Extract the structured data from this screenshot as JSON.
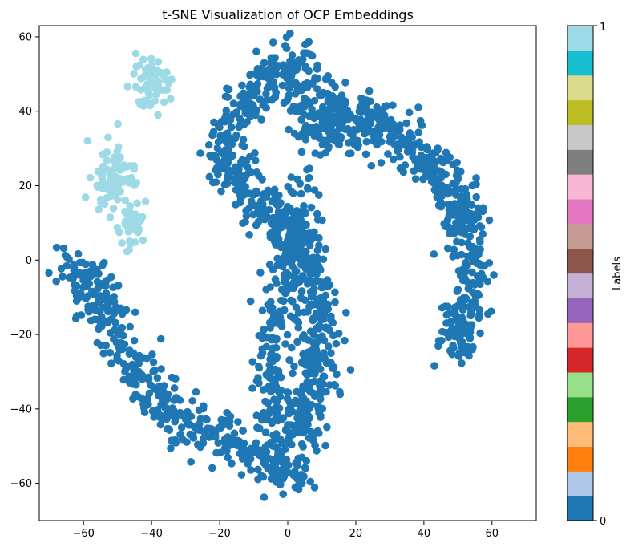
{
  "chart_data": {
    "type": "scatter",
    "title": "t-SNE Visualization of OCP Embeddings",
    "xlabel": "",
    "ylabel": "",
    "xlim": [
      -73,
      73
    ],
    "ylim": [
      -70,
      63
    ],
    "xticks": [
      -60,
      -40,
      -20,
      0,
      20,
      40,
      60
    ],
    "yticks": [
      -60,
      -40,
      -20,
      0,
      20,
      40,
      60
    ],
    "grid": false,
    "point_colors": {
      "label_0": "#1f77b4",
      "label_1": "#9edae5"
    },
    "clusters": [
      {
        "label": 1,
        "region": "upper-left small blob",
        "center": [
          -40,
          47
        ],
        "spread": [
          3,
          4
        ],
        "count": 60
      },
      {
        "label": 1,
        "region": "left blob",
        "center": [
          -51,
          23
        ],
        "spread": [
          3,
          4
        ],
        "count": 100
      },
      {
        "label": 1,
        "region": "left tail",
        "center": [
          -46,
          10
        ],
        "spread": [
          2,
          4
        ],
        "count": 40
      },
      {
        "label": 0,
        "region": "left arm",
        "path": [
          [
            -65,
            -1
          ],
          [
            -58,
            -6
          ],
          [
            -50,
            -20
          ],
          [
            -45,
            -28
          ],
          [
            -38,
            -40
          ],
          [
            -30,
            -44
          ],
          [
            -20,
            -47
          ],
          [
            -10,
            -52
          ],
          [
            0,
            -58
          ],
          [
            5,
            -55
          ]
        ],
        "count": 420
      },
      {
        "label": 0,
        "region": "center spine",
        "path": [
          [
            3,
            -50
          ],
          [
            8,
            -35
          ],
          [
            10,
            -20
          ],
          [
            8,
            -5
          ],
          [
            3,
            5
          ],
          [
            -5,
            12
          ],
          [
            -10,
            18
          ],
          [
            -18,
            25
          ],
          [
            -18,
            35
          ],
          [
            -10,
            45
          ],
          [
            0,
            52
          ],
          [
            6,
            55
          ]
        ],
        "count": 640
      },
      {
        "label": 0,
        "region": "center lower",
        "path": [
          [
            -3,
            -50
          ],
          [
            -5,
            -35
          ],
          [
            -5,
            -20
          ],
          [
            0,
            -5
          ],
          [
            3,
            10
          ],
          [
            5,
            20
          ]
        ],
        "count": 260
      },
      {
        "label": 0,
        "region": "upper arc",
        "path": [
          [
            0,
            45
          ],
          [
            10,
            42
          ],
          [
            20,
            40
          ],
          [
            30,
            35
          ],
          [
            40,
            28
          ],
          [
            48,
            20
          ],
          [
            52,
            8
          ],
          [
            55,
            -5
          ],
          [
            52,
            -15
          ],
          [
            50,
            -25
          ]
        ],
        "count": 520
      },
      {
        "label": 0,
        "region": "inner arc",
        "path": [
          [
            5,
            35
          ],
          [
            15,
            35
          ],
          [
            25,
            32
          ]
        ],
        "count": 90
      }
    ],
    "colorbar": {
      "label": "Labels",
      "min_label": "0",
      "max_label": "1",
      "colors": [
        "#1f77b4",
        "#aec7e8",
        "#ff7f0e",
        "#ffbb78",
        "#2ca02c",
        "#98df8a",
        "#d62728",
        "#ff9896",
        "#9467bd",
        "#c5b0d5",
        "#8c564b",
        "#c49c94",
        "#e377c2",
        "#f7b6d2",
        "#7f7f7f",
        "#c7c7c7",
        "#bcbd22",
        "#dbdb8d",
        "#17becf",
        "#9edae5"
      ]
    }
  }
}
